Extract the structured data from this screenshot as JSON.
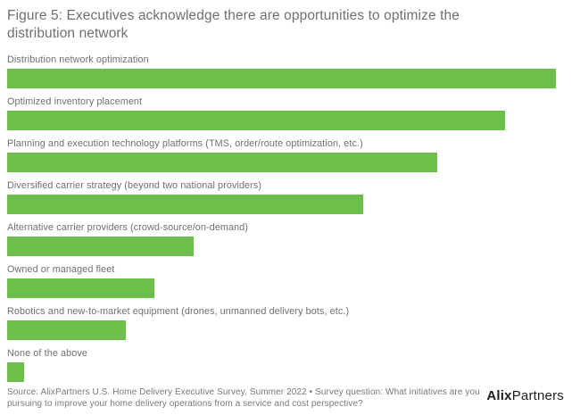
{
  "figure": {
    "title": "Figure 5: Executives acknowledge there are opportunities to optimize the distribution network"
  },
  "chart_data": {
    "type": "bar",
    "orientation": "horizontal",
    "title": "Figure 5: Executives acknowledge there are opportunities to optimize the distribution network",
    "categories": [
      "Distribution network optimization",
      "Optimized inventory placement",
      "Planning and execution technology platforms (TMS, order/route optimization, etc.)",
      "Diversified carrier strategy (beyond two national providers)",
      "Alternative carrier providers (crowd-source/on-demand)",
      "Owned or managed fleet",
      "Robotics and new-to-market equipment (drones, unmanned delivery bots, etc.)",
      "None of the above"
    ],
    "values": [
      97,
      88,
      76,
      63,
      33,
      26,
      21,
      3
    ],
    "values_note": "No numeric data labels or axis shown in figure; values estimated from bar lengths on a 0-100 scale",
    "xlabel": "",
    "ylabel": "",
    "xlim": [
      0,
      100
    ],
    "grid": false,
    "legend": false,
    "bar_color": "#6cbf4b"
  },
  "footer": {
    "source": "Source: AlixPartners U.S. Home Delivery Executive Survey, Summer 2022 • Survey question: What initiatives are you pursuing to improve your home delivery operations from a service and cost perspective?",
    "logo_bold": "Alix",
    "logo_regular": "Partners"
  },
  "colors": {
    "bar_green": "#6cbf4b",
    "title_gray": "#6e6f72",
    "label_gray": "#6e6f72",
    "source_gray": "#77787a",
    "logo_black": "#1d1d1f",
    "background": "#ffffff"
  }
}
